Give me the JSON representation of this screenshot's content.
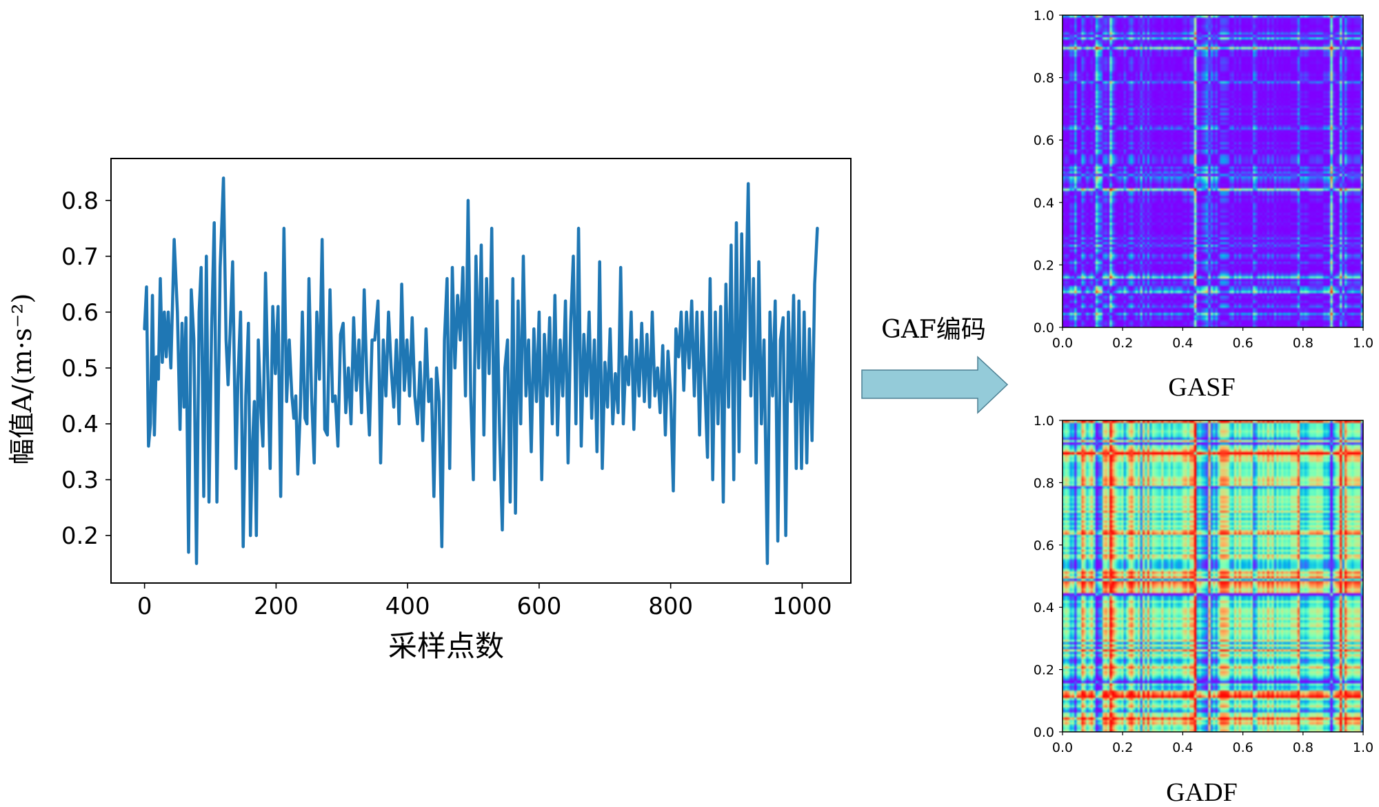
{
  "figure": {
    "arrow_label": "GAF编码",
    "arrow_fill": "#94cbd9",
    "arrow_stroke": "#4b7f92"
  },
  "chart_data": [
    {
      "type": "line",
      "xlabel": "采样点数",
      "ylabel": "幅值A/(m·s⁻²)",
      "xlim": [
        -51,
        1074
      ],
      "ylim": [
        0.115,
        0.875
      ],
      "xticks": [
        0,
        200,
        400,
        600,
        800,
        1000
      ],
      "xtick_labels": [
        "0",
        "200",
        "400",
        "600",
        "800",
        "1000"
      ],
      "yticks": [
        0.2,
        0.3,
        0.4,
        0.5,
        0.6,
        0.7,
        0.8
      ],
      "ytick_labels": [
        "0.2",
        "0.3",
        "0.4",
        "0.5",
        "0.6",
        "0.7",
        "0.8"
      ],
      "grid": false,
      "series": [
        {
          "color": "#1f77b4",
          "points": [
            [
              0,
              0.57
            ],
            [
              3,
              0.645
            ],
            [
              6,
              0.36
            ],
            [
              9,
              0.4
            ],
            [
              12,
              0.63
            ],
            [
              15,
              0.38
            ],
            [
              18,
              0.52
            ],
            [
              21,
              0.48
            ],
            [
              24,
              0.66
            ],
            [
              27,
              0.51
            ],
            [
              30,
              0.6
            ],
            [
              33,
              0.52
            ],
            [
              36,
              0.6
            ],
            [
              40,
              0.5
            ],
            [
              45,
              0.73
            ],
            [
              50,
              0.6
            ],
            [
              54,
              0.39
            ],
            [
              57,
              0.58
            ],
            [
              60,
              0.43
            ],
            [
              63,
              0.59
            ],
            [
              67,
              0.17
            ],
            [
              71,
              0.64
            ],
            [
              75,
              0.55
            ],
            [
              79,
              0.15
            ],
            [
              83,
              0.6
            ],
            [
              86,
              0.68
            ],
            [
              90,
              0.27
            ],
            [
              94,
              0.7
            ],
            [
              98,
              0.26
            ],
            [
              102,
              0.57
            ],
            [
              106,
              0.76
            ],
            [
              110,
              0.26
            ],
            [
              115,
              0.68
            ],
            [
              120,
              0.84
            ],
            [
              124,
              0.55
            ],
            [
              127,
              0.47
            ],
            [
              130,
              0.56
            ],
            [
              134,
              0.69
            ],
            [
              139,
              0.32
            ],
            [
              142,
              0.48
            ],
            [
              146,
              0.6
            ],
            [
              150,
              0.18
            ],
            [
              154,
              0.45
            ],
            [
              158,
              0.58
            ],
            [
              161,
              0.2
            ],
            [
              164,
              0.36
            ],
            [
              167,
              0.44
            ],
            [
              170,
              0.2
            ],
            [
              173,
              0.55
            ],
            [
              177,
              0.42
            ],
            [
              180,
              0.36
            ],
            [
              184,
              0.67
            ],
            [
              188,
              0.46
            ],
            [
              191,
              0.32
            ],
            [
              195,
              0.61
            ],
            [
              199,
              0.49
            ],
            [
              203,
              0.61
            ],
            [
              207,
              0.27
            ],
            [
              212,
              0.75
            ],
            [
              216,
              0.44
            ],
            [
              220,
              0.55
            ],
            [
              224,
              0.45
            ],
            [
              227,
              0.41
            ],
            [
              230,
              0.45
            ],
            [
              233,
              0.31
            ],
            [
              237,
              0.43
            ],
            [
              240,
              0.6
            ],
            [
              244,
              0.41
            ],
            [
              247,
              0.4
            ],
            [
              250,
              0.66
            ],
            [
              254,
              0.45
            ],
            [
              258,
              0.33
            ],
            [
              262,
              0.6
            ],
            [
              266,
              0.48
            ],
            [
              270,
              0.73
            ],
            [
              274,
              0.39
            ],
            [
              278,
              0.38
            ],
            [
              282,
              0.64
            ],
            [
              286,
              0.44
            ],
            [
              290,
              0.45
            ],
            [
              294,
              0.36
            ],
            [
              298,
              0.56
            ],
            [
              302,
              0.58
            ],
            [
              306,
              0.42
            ],
            [
              310,
              0.5
            ],
            [
              314,
              0.4
            ],
            [
              318,
              0.59
            ],
            [
              322,
              0.46
            ],
            [
              326,
              0.55
            ],
            [
              330,
              0.42
            ],
            [
              334,
              0.64
            ],
            [
              338,
              0.48
            ],
            [
              342,
              0.38
            ],
            [
              346,
              0.55
            ],
            [
              350,
              0.55
            ],
            [
              355,
              0.62
            ],
            [
              359,
              0.33
            ],
            [
              363,
              0.55
            ],
            [
              367,
              0.45
            ],
            [
              371,
              0.6
            ],
            [
              375,
              0.5
            ],
            [
              379,
              0.43
            ],
            [
              383,
              0.55
            ],
            [
              387,
              0.4
            ],
            [
              391,
              0.65
            ],
            [
              395,
              0.46
            ],
            [
              399,
              0.55
            ],
            [
              403,
              0.45
            ],
            [
              407,
              0.59
            ],
            [
              411,
              0.45
            ],
            [
              415,
              0.4
            ],
            [
              419,
              0.51
            ],
            [
              423,
              0.37
            ],
            [
              428,
              0.57
            ],
            [
              432,
              0.44
            ],
            [
              436,
              0.48
            ],
            [
              440,
              0.27
            ],
            [
              444,
              0.5
            ],
            [
              448,
              0.44
            ],
            [
              452,
              0.18
            ],
            [
              456,
              0.55
            ],
            [
              460,
              0.66
            ],
            [
              464,
              0.32
            ],
            [
              468,
              0.68
            ],
            [
              472,
              0.5
            ],
            [
              476,
              0.63
            ],
            [
              480,
              0.55
            ],
            [
              484,
              0.68
            ],
            [
              488,
              0.45
            ],
            [
              492,
              0.8
            ],
            [
              496,
              0.45
            ],
            [
              500,
              0.3
            ],
            [
              504,
              0.7
            ],
            [
              508,
              0.5
            ],
            [
              512,
              0.72
            ],
            [
              516,
              0.38
            ],
            [
              520,
              0.66
            ],
            [
              524,
              0.49
            ],
            [
              528,
              0.75
            ],
            [
              532,
              0.3
            ],
            [
              536,
              0.62
            ],
            [
              540,
              0.38
            ],
            [
              544,
              0.21
            ],
            [
              548,
              0.5
            ],
            [
              552,
              0.55
            ],
            [
              556,
              0.26
            ],
            [
              560,
              0.66
            ],
            [
              564,
              0.24
            ],
            [
              568,
              0.62
            ],
            [
              572,
              0.4
            ],
            [
              576,
              0.7
            ],
            [
              580,
              0.45
            ],
            [
              584,
              0.55
            ],
            [
              588,
              0.35
            ],
            [
              592,
              0.57
            ],
            [
              596,
              0.44
            ],
            [
              600,
              0.6
            ],
            [
              604,
              0.3
            ],
            [
              608,
              0.56
            ],
            [
              612,
              0.45
            ],
            [
              616,
              0.59
            ],
            [
              620,
              0.4
            ],
            [
              624,
              0.63
            ],
            [
              628,
              0.38
            ],
            [
              632,
              0.55
            ],
            [
              636,
              0.45
            ],
            [
              640,
              0.62
            ],
            [
              644,
              0.33
            ],
            [
              648,
              0.58
            ],
            [
              652,
              0.7
            ],
            [
              656,
              0.4
            ],
            [
              660,
              0.75
            ],
            [
              664,
              0.36
            ],
            [
              668,
              0.56
            ],
            [
              672,
              0.45
            ],
            [
              676,
              0.6
            ],
            [
              680,
              0.41
            ],
            [
              684,
              0.55
            ],
            [
              688,
              0.35
            ],
            [
              692,
              0.69
            ],
            [
              696,
              0.32
            ],
            [
              700,
              0.51
            ],
            [
              704,
              0.43
            ],
            [
              708,
              0.57
            ],
            [
              712,
              0.4
            ],
            [
              716,
              0.49
            ],
            [
              720,
              0.42
            ],
            [
              724,
              0.68
            ],
            [
              728,
              0.4
            ],
            [
              732,
              0.52
            ],
            [
              736,
              0.47
            ],
            [
              740,
              0.6
            ],
            [
              744,
              0.39
            ],
            [
              748,
              0.55
            ],
            [
              752,
              0.45
            ],
            [
              756,
              0.58
            ],
            [
              760,
              0.44
            ],
            [
              764,
              0.56
            ],
            [
              768,
              0.43
            ],
            [
              772,
              0.6
            ],
            [
              776,
              0.45
            ],
            [
              780,
              0.5
            ],
            [
              784,
              0.42
            ],
            [
              788,
              0.54
            ],
            [
              792,
              0.38
            ],
            [
              796,
              0.53
            ],
            [
              800,
              0.45
            ],
            [
              804,
              0.28
            ],
            [
              808,
              0.57
            ],
            [
              812,
              0.52
            ],
            [
              816,
              0.6
            ],
            [
              820,
              0.46
            ],
            [
              824,
              0.6
            ],
            [
              828,
              0.5
            ],
            [
              832,
              0.62
            ],
            [
              836,
              0.45
            ],
            [
              840,
              0.6
            ],
            [
              844,
              0.38
            ],
            [
              848,
              0.6
            ],
            [
              852,
              0.47
            ],
            [
              856,
              0.34
            ],
            [
              860,
              0.66
            ],
            [
              864,
              0.3
            ],
            [
              868,
              0.6
            ],
            [
              872,
              0.4
            ],
            [
              876,
              0.61
            ],
            [
              880,
              0.26
            ],
            [
              884,
              0.65
            ],
            [
              888,
              0.43
            ],
            [
              892,
              0.72
            ],
            [
              896,
              0.3
            ],
            [
              900,
              0.76
            ],
            [
              904,
              0.35
            ],
            [
              908,
              0.74
            ],
            [
              912,
              0.48
            ],
            [
              918,
              0.83
            ],
            [
              922,
              0.45
            ],
            [
              926,
              0.66
            ],
            [
              930,
              0.33
            ],
            [
              934,
              0.69
            ],
            [
              938,
              0.4
            ],
            [
              942,
              0.55
            ],
            [
              947,
              0.15
            ],
            [
              951,
              0.6
            ],
            [
              955,
              0.45
            ],
            [
              959,
              0.62
            ],
            [
              963,
              0.19
            ],
            [
              967,
              0.55
            ],
            [
              971,
              0.59
            ],
            [
              975,
              0.2
            ],
            [
              979,
              0.6
            ],
            [
              983,
              0.44
            ],
            [
              987,
              0.63
            ],
            [
              991,
              0.32
            ],
            [
              995,
              0.62
            ],
            [
              999,
              0.32
            ],
            [
              1003,
              0.6
            ],
            [
              1007,
              0.33
            ],
            [
              1011,
              0.57
            ],
            [
              1015,
              0.37
            ],
            [
              1019,
              0.65
            ],
            [
              1023,
              0.75
            ]
          ]
        }
      ]
    },
    {
      "type": "heatmap",
      "caption": "GASF",
      "colormap": "rainbow",
      "xlim": [
        0,
        1
      ],
      "ylim": [
        0,
        1
      ],
      "xticks": [
        0,
        0.2,
        0.4,
        0.6,
        0.8,
        1.0
      ],
      "xtick_labels": [
        "0.0",
        "0.2",
        "0.4",
        "0.6",
        "0.8",
        "1.0"
      ],
      "yticks": [
        0,
        0.2,
        0.4,
        0.6,
        0.8,
        1.0
      ],
      "ytick_labels": [
        "0.0",
        "0.2",
        "0.4",
        "0.6",
        "0.8",
        "1.0"
      ]
    },
    {
      "type": "heatmap",
      "caption": "GADF",
      "colormap": "rainbow",
      "xlim": [
        0,
        1
      ],
      "ylim": [
        0,
        1
      ],
      "xticks": [
        0,
        0.2,
        0.4,
        0.6,
        0.8,
        1.0
      ],
      "xtick_labels": [
        "0.0",
        "0.2",
        "0.4",
        "0.6",
        "0.8",
        "1.0"
      ],
      "yticks": [
        0,
        0.2,
        0.4,
        0.6,
        0.8,
        1.0
      ],
      "ytick_labels": [
        "0.0",
        "0.2",
        "0.4",
        "0.6",
        "0.8",
        "1.0"
      ]
    }
  ]
}
